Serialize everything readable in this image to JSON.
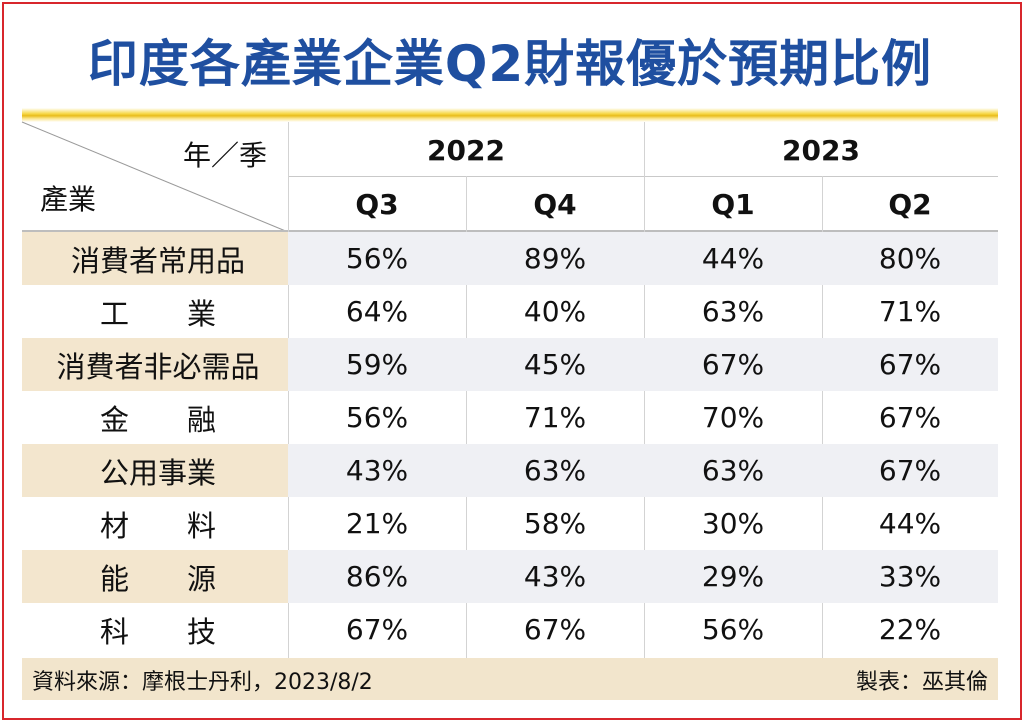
{
  "title": "印度各產業企業Q2財報優於預期比例",
  "header": {
    "corner_top": "年／季",
    "corner_bottom": "產業",
    "years": [
      {
        "label": "2022",
        "quarters": [
          "Q3",
          "Q4"
        ]
      },
      {
        "label": "2023",
        "quarters": [
          "Q1",
          "Q2"
        ]
      }
    ]
  },
  "rows": [
    {
      "industry": "消費者常用品",
      "values": [
        "56%",
        "89%",
        "44%",
        "80%"
      ]
    },
    {
      "industry": "工　　業",
      "values": [
        "64%",
        "40%",
        "63%",
        "71%"
      ]
    },
    {
      "industry": "消費者非必需品",
      "values": [
        "59%",
        "45%",
        "67%",
        "67%"
      ]
    },
    {
      "industry": "金　　融",
      "values": [
        "56%",
        "71%",
        "70%",
        "67%"
      ]
    },
    {
      "industry": "公用事業",
      "values": [
        "43%",
        "63%",
        "63%",
        "67%"
      ]
    },
    {
      "industry": "材　　料",
      "values": [
        "21%",
        "58%",
        "30%",
        "44%"
      ]
    },
    {
      "industry": "能　　源",
      "values": [
        "86%",
        "43%",
        "29%",
        "33%"
      ]
    },
    {
      "industry": "科　　技",
      "values": [
        "67%",
        "67%",
        "56%",
        "22%"
      ]
    }
  ],
  "footer": {
    "source": "資料來源：摩根士丹利，2023/8/2",
    "author": "製表：巫其倫"
  },
  "colors": {
    "title": "#1f4fa0",
    "frame": "#d8262c",
    "gold_rule": "#e9bd1c",
    "stripe_row": "#eff0f4",
    "stripe_industry": "#f3e6ce",
    "footer_bg": "#f2e5cc"
  },
  "chart_data": {
    "type": "table",
    "title": "印度各產業企業Q2財報優於預期比例",
    "columns": [
      "2022 Q3",
      "2022 Q4",
      "2023 Q1",
      "2023 Q2"
    ],
    "series": [
      {
        "name": "消費者常用品",
        "values": [
          56,
          89,
          44,
          80
        ]
      },
      {
        "name": "工業",
        "values": [
          64,
          40,
          63,
          71
        ]
      },
      {
        "name": "消費者非必需品",
        "values": [
          59,
          45,
          67,
          67
        ]
      },
      {
        "name": "金融",
        "values": [
          56,
          71,
          70,
          67
        ]
      },
      {
        "name": "公用事業",
        "values": [
          43,
          63,
          63,
          67
        ]
      },
      {
        "name": "材料",
        "values": [
          21,
          58,
          30,
          44
        ]
      },
      {
        "name": "能源",
        "values": [
          86,
          43,
          29,
          33
        ]
      },
      {
        "name": "科技",
        "values": [
          67,
          67,
          56,
          22
        ]
      }
    ],
    "unit": "%"
  }
}
